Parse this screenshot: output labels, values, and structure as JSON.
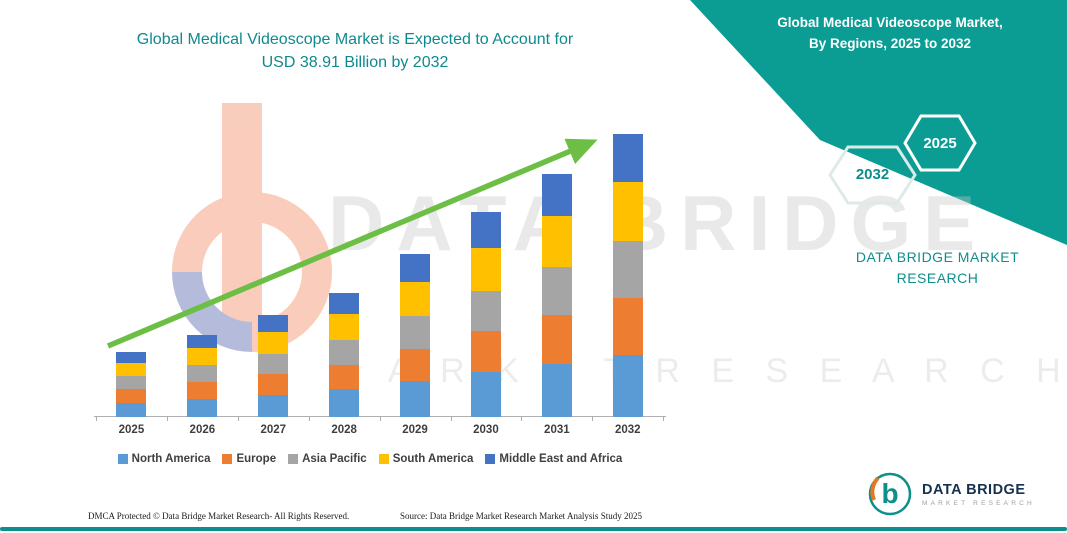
{
  "main_title": {
    "line1": "Global Medical Videoscope Market is Expected to Account for",
    "line2": "USD 38.91 Billion by 2032"
  },
  "side_panel": {
    "panel_color": "#0b9c94",
    "title_line1": "Global Medical Videoscope Market,",
    "title_line2": "By Regions, 2025 to 2032",
    "hexagons": [
      {
        "label": "2032"
      },
      {
        "label": "2025"
      }
    ],
    "brand_line1": "DATA BRIDGE MARKET",
    "brand_line2": "RESEARCH"
  },
  "watermark": {
    "line1": "DATA BRIDGE",
    "line2": "M A R K E T   R E S E A R C H"
  },
  "chart_data": {
    "type": "bar",
    "stacked": true,
    "unit": "USD Billion",
    "title": "Global Medical Videoscope Market is Expected to Account for USD 38.91 Billion by 2032",
    "categories": [
      "2025",
      "2026",
      "2027",
      "2028",
      "2029",
      "2030",
      "2031",
      "2032"
    ],
    "series": [
      {
        "name": "North America",
        "color": "#5B9BD5",
        "values": [
          2.0,
          2.5,
          3.1,
          3.8,
          4.9,
          6.2,
          7.3,
          8.6
        ]
      },
      {
        "name": "Europe",
        "color": "#ED7D31",
        "values": [
          1.8,
          2.3,
          2.8,
          3.4,
          4.5,
          5.6,
          6.7,
          7.8
        ]
      },
      {
        "name": "Asia Pacific",
        "color": "#A5A5A5",
        "values": [
          1.8,
          2.3,
          2.8,
          3.4,
          4.5,
          5.6,
          6.7,
          7.8
        ]
      },
      {
        "name": "South America",
        "color": "#FFC000",
        "values": [
          1.9,
          2.4,
          3.0,
          3.6,
          4.7,
          5.9,
          7.0,
          8.1
        ]
      },
      {
        "name": "Middle East and Africa",
        "color": "#4472C4",
        "values": [
          1.5,
          1.8,
          2.4,
          2.9,
          3.8,
          4.9,
          5.7,
          6.6
        ]
      }
    ],
    "totals": [
      9.0,
      11.3,
      14.1,
      17.1,
      22.4,
      28.2,
      33.4,
      38.91
    ],
    "highlight_value": "USD 38.91 Billion by 2032",
    "legend_position": "bottom",
    "trend_arrow": {
      "direction": "up",
      "color": "#6cbe45"
    },
    "ylim": [
      0,
      40
    ],
    "grid": false
  },
  "footer": {
    "dmca": "DMCA Protected © Data Bridge Market Research-  All Rights Reserved.",
    "source": "Source: Data Bridge Market Research  Market Analysis Study 2025"
  },
  "logo": {
    "line1": "DATA BRIDGE",
    "line2": "MARKET RESEARCH"
  }
}
